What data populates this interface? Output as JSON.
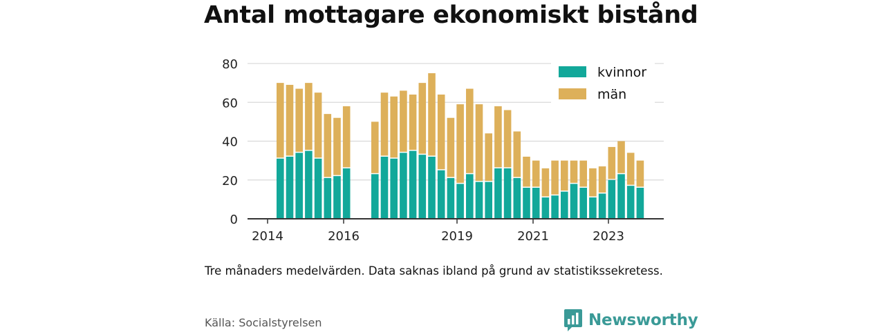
{
  "title": "Antal mottagare ekonomiskt bistånd",
  "note": "Tre månaders medelvärden. Data saknas ibland på grund av statistikssekretess.",
  "source": "Källa: Socialstyrelsen",
  "brand": {
    "name": "Newsworthy",
    "icon": "newsworthy-logo-icon",
    "color": "#3a9a97"
  },
  "chart_data": {
    "type": "bar",
    "stacked": true,
    "x_ticks": [
      "2014",
      "2016",
      "2019",
      "2021",
      "2023"
    ],
    "y_ticks": [
      "0",
      "20",
      "40",
      "60",
      "80"
    ],
    "ylim": [
      0,
      80
    ],
    "grid": true,
    "legend_position": "top-right",
    "series": [
      {
        "name": "kvinnor",
        "color": "#12a89a",
        "values": [
          31,
          32,
          34,
          35,
          31,
          21,
          22,
          26,
          23,
          32,
          31,
          34,
          35,
          33,
          32,
          25,
          21,
          18,
          23,
          19,
          19,
          26,
          26,
          21,
          16,
          16,
          11,
          12,
          14,
          18,
          16,
          11,
          13,
          20,
          23,
          17,
          16
        ]
      },
      {
        "name": "män",
        "color": "#ddb05a",
        "values": [
          39,
          37,
          33,
          35,
          34,
          33,
          30,
          32,
          27,
          33,
          32,
          32,
          29,
          37,
          43,
          39,
          31,
          41,
          44,
          40,
          25,
          32,
          30,
          24,
          16,
          14,
          15,
          18,
          16,
          12,
          14,
          15,
          14,
          17,
          17,
          17,
          14
        ]
      }
    ],
    "groups": [
      {
        "start_index": 0,
        "count": 8
      },
      {
        "start_index": 8,
        "count": 29
      }
    ]
  }
}
